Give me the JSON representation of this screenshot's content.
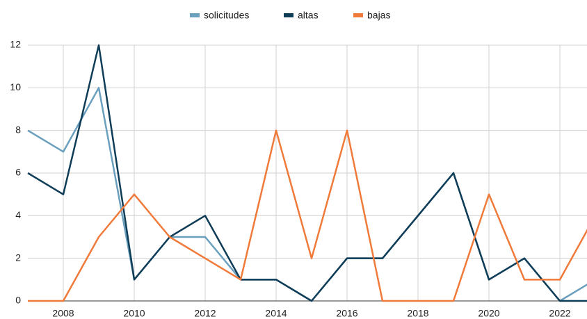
{
  "chart_data": {
    "type": "line",
    "x": [
      2007,
      2008,
      2009,
      2010,
      2011,
      2012,
      2013,
      2014,
      2015,
      2016,
      2017,
      2018,
      2019,
      2020,
      2021,
      2022,
      2023
    ],
    "series": [
      {
        "name": "solicitudes",
        "color": "#6a9fbd",
        "values": [
          8,
          7,
          10,
          1,
          3,
          3,
          1,
          1,
          0,
          2,
          2,
          4,
          6,
          1,
          2,
          0,
          1
        ]
      },
      {
        "name": "altas",
        "color": "#0f3d57",
        "values": [
          6,
          5,
          12,
          1,
          3,
          4,
          1,
          1,
          0,
          2,
          2,
          4,
          6,
          1,
          2,
          0,
          0
        ]
      },
      {
        "name": "bajas",
        "color": "#f07a3a",
        "values": [
          0,
          0,
          3,
          5,
          3,
          2,
          1,
          8,
          2,
          8,
          0,
          0,
          0,
          5,
          1,
          1,
          4
        ]
      }
    ],
    "xlim": [
      2007,
      2023
    ],
    "xticks": [
      2008,
      2010,
      2012,
      2014,
      2016,
      2018,
      2020,
      2022
    ],
    "ylim": [
      0,
      12
    ],
    "yticks": [
      0,
      2,
      4,
      6,
      8,
      10,
      12
    ],
    "grid": true,
    "legend": "top"
  }
}
